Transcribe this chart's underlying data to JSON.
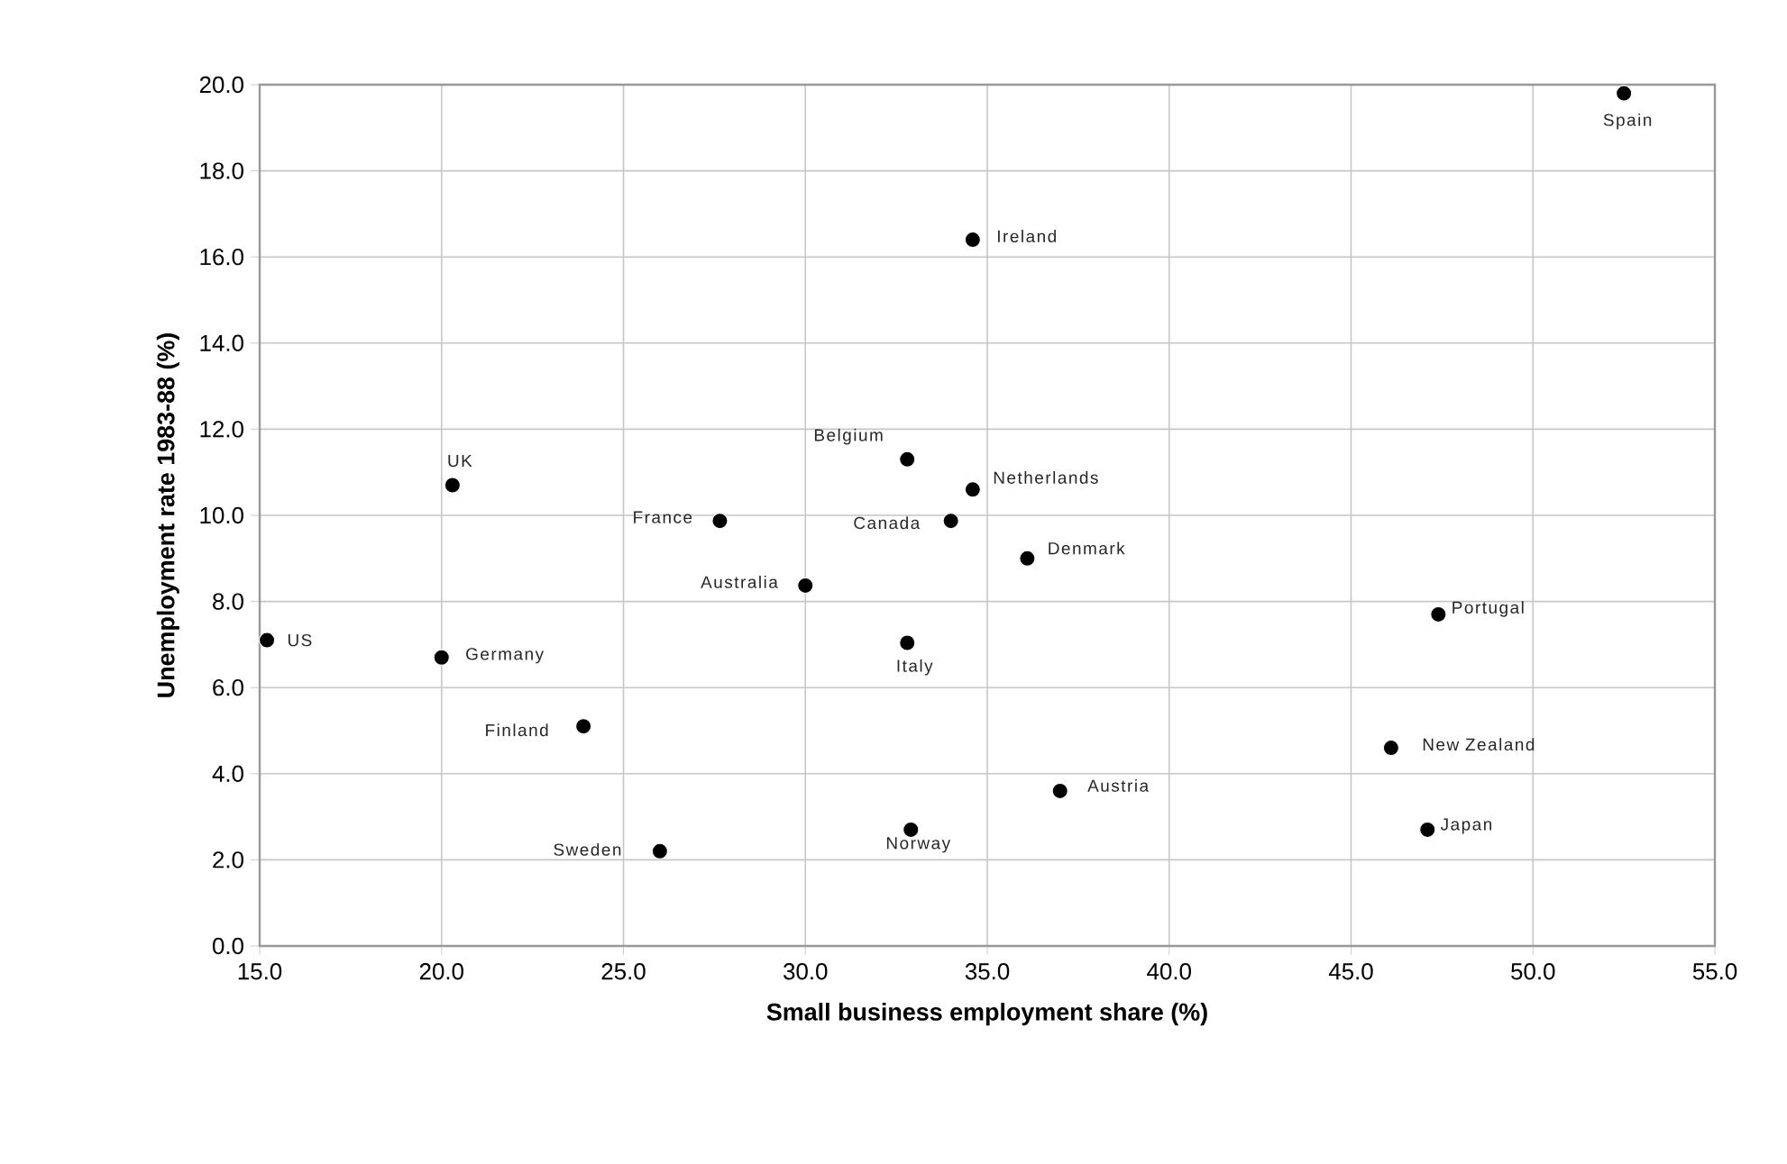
{
  "chart_data": {
    "type": "scatter",
    "xlabel": "Small business employment share (%)",
    "ylabel": "Unemployment rate 1983-88 (%)",
    "x": [
      15.2,
      20.3,
      20.0,
      23.9,
      26.0,
      27.65,
      30.0,
      32.8,
      32.8,
      32.9,
      34.0,
      34.6,
      34.6,
      36.1,
      37.0,
      46.1,
      47.1,
      47.4,
      52.5
    ],
    "series": [
      {
        "color": "#000000",
        "values": [
          7.1,
          10.7,
          6.7,
          5.1,
          2.2,
          9.87,
          8.37,
          11.3,
          7.04,
          2.7,
          9.87,
          10.6,
          16.4,
          9.0,
          3.6,
          4.6,
          2.7,
          7.7,
          19.8
        ]
      }
    ],
    "annotations": [
      {
        "text": "US",
        "x": 15.2,
        "y": 7.1
      },
      {
        "text": "UK",
        "x": 20.3,
        "y": 10.7
      },
      {
        "text": "Germany",
        "x": 20.0,
        "y": 6.7
      },
      {
        "text": "Finland",
        "x": 23.9,
        "y": 5.1
      },
      {
        "text": "Sweden",
        "x": 26.0,
        "y": 2.2
      },
      {
        "text": "France",
        "x": 27.65,
        "y": 9.87
      },
      {
        "text": "Australia",
        "x": 30.0,
        "y": 8.37
      },
      {
        "text": "Belgium",
        "x": 32.8,
        "y": 11.3
      },
      {
        "text": "Italy",
        "x": 32.8,
        "y": 7.04
      },
      {
        "text": "Norway",
        "x": 32.9,
        "y": 2.7
      },
      {
        "text": "Canada",
        "x": 34.0,
        "y": 9.87
      },
      {
        "text": "Netherlands",
        "x": 34.6,
        "y": 10.6
      },
      {
        "text": "Ireland",
        "x": 34.6,
        "y": 16.4
      },
      {
        "text": "Denmark",
        "x": 36.1,
        "y": 9.0
      },
      {
        "text": "Austria",
        "x": 37.0,
        "y": 3.6
      },
      {
        "text": "New Zealand",
        "x": 46.1,
        "y": 4.6
      },
      {
        "text": "Japan",
        "x": 47.1,
        "y": 2.7
      },
      {
        "text": "Portugal",
        "x": 47.4,
        "y": 7.7
      },
      {
        "text": "Spain",
        "x": 52.5,
        "y": 19.8
      }
    ],
    "xlim": [
      15,
      55
    ],
    "ylim": [
      0,
      20
    ],
    "xticks": [
      {
        "value": 15,
        "label": "15.0"
      },
      {
        "value": 20,
        "label": "20.0"
      },
      {
        "value": 25,
        "label": "25.0"
      },
      {
        "value": 30,
        "label": "30.0"
      },
      {
        "value": 35,
        "label": "35.0"
      },
      {
        "value": 40,
        "label": "40.0"
      },
      {
        "value": 45,
        "label": "45.0"
      },
      {
        "value": 50,
        "label": "50.0"
      },
      {
        "value": 55,
        "label": "55.0"
      }
    ],
    "yticks": [
      {
        "value": 0,
        "label": "0.0"
      },
      {
        "value": 2,
        "label": "2.0"
      },
      {
        "value": 4,
        "label": "4.0"
      },
      {
        "value": 6,
        "label": "6.0"
      },
      {
        "value": 8,
        "label": "8.0"
      },
      {
        "value": 10,
        "label": "10.0"
      },
      {
        "value": 12,
        "label": "12.0"
      },
      {
        "value": 14,
        "label": "14.0"
      },
      {
        "value": 16,
        "label": "16.0"
      },
      {
        "value": 18,
        "label": "18.0"
      },
      {
        "value": 20,
        "label": "20.0"
      }
    ],
    "grid": true,
    "marker": "circle"
  }
}
